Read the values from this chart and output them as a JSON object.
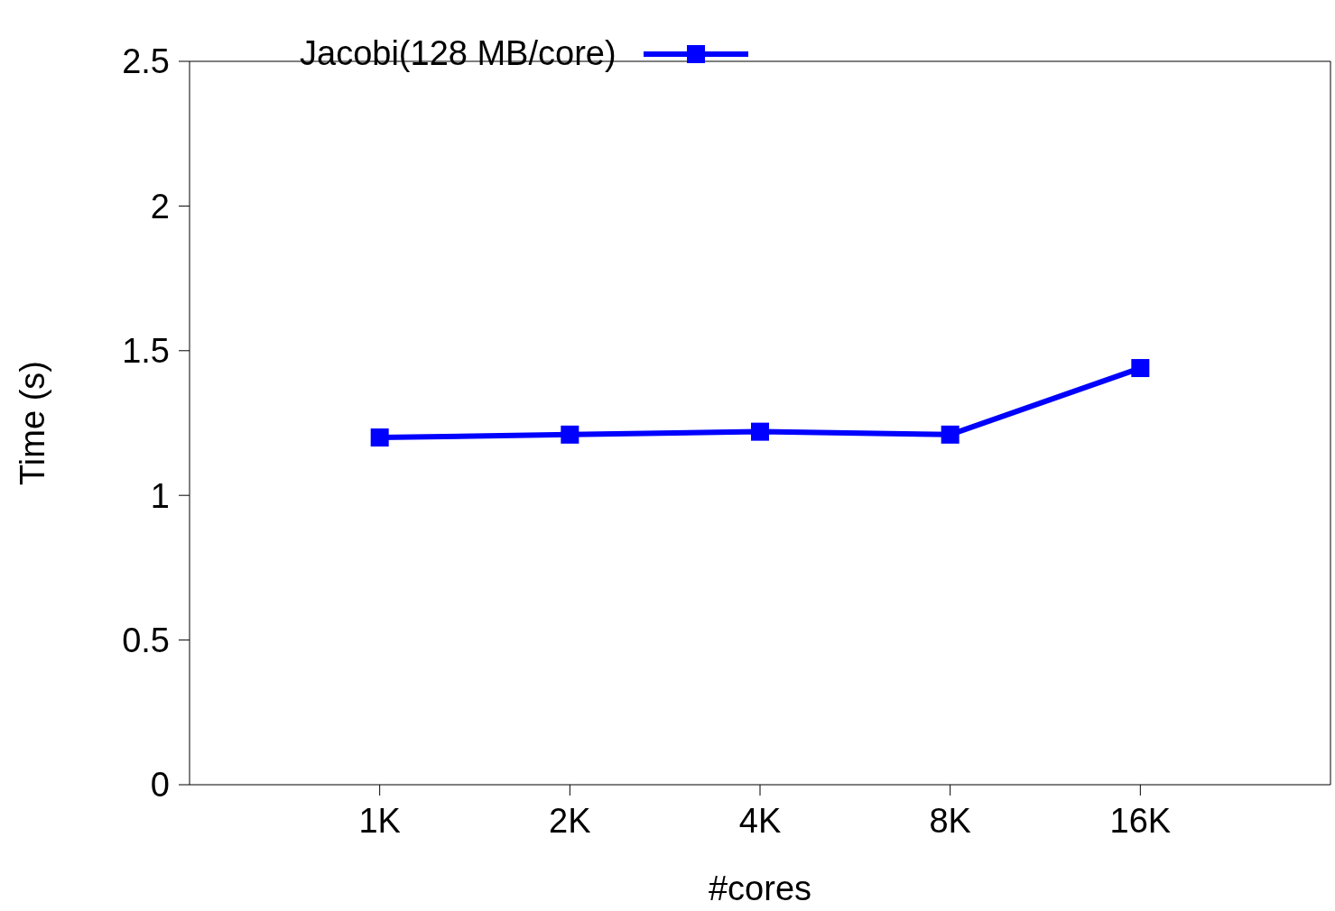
{
  "chart_data": {
    "type": "line",
    "xlabel": "#cores",
    "ylabel": "Time (s)",
    "categories": [
      "1K",
      "2K",
      "4K",
      "8K",
      "16K"
    ],
    "series": [
      {
        "name": "Jacobi(128 MB/core)",
        "color": "#0000ff",
        "values": [
          1.2,
          1.21,
          1.22,
          1.21,
          1.44
        ]
      }
    ],
    "ylim": [
      0,
      2.5
    ],
    "yticks": [
      0,
      0.5,
      1,
      1.5,
      2,
      2.5
    ],
    "legend": "top left",
    "marker": "square",
    "line_style": "solid"
  }
}
